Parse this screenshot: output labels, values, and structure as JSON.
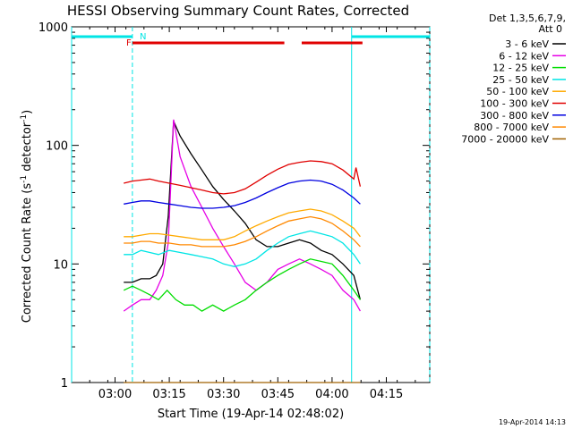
{
  "chart_data": {
    "type": "line",
    "title": "HESSI Observing Summary Count Rates, Corrected",
    "xlabel": "Start Time (19-Apr-14 02:48:02)",
    "ylabel_main": "Corrected Count Rate (s",
    "ylabel_sup1": "-1",
    "ylabel_mid": " detector",
    "ylabel_sup2": "-1",
    "ylabel_end": ")",
    "yscale": "log",
    "ylim": [
      1,
      1000
    ],
    "xlim": [
      2.8,
      4.45
    ],
    "x_ticks": [
      {
        "x": 3.0,
        "label": "03:00"
      },
      {
        "x": 3.25,
        "label": "03:15"
      },
      {
        "x": 3.5,
        "label": "03:30"
      },
      {
        "x": 3.75,
        "label": "03:45"
      },
      {
        "x": 4.0,
        "label": "04:00"
      },
      {
        "x": 4.25,
        "label": "04:15"
      }
    ],
    "y_ticks": [
      {
        "y": 1,
        "label": "1"
      },
      {
        "y": 10,
        "label": "10"
      },
      {
        "y": 100,
        "label": "100"
      },
      {
        "y": 1000,
        "label": "1000"
      }
    ],
    "legend_header": [
      "Det 1,3,5,6,7,9,",
      "Att 0"
    ],
    "timestamp": "19-Apr-2014 14:13",
    "flags": {
      "night_label": "N",
      "flare_label": "F",
      "night_color": "#00e5e5",
      "flare_color": "#e00000",
      "night_segments": [
        [
          2.8,
          3.08
        ],
        [
          4.09,
          4.45
        ]
      ],
      "flare_segments": [
        [
          3.08,
          3.78
        ],
        [
          3.86,
          4.14
        ]
      ]
    },
    "series": [
      {
        "name": "3 - 6 keV",
        "color": "#000000",
        "x": [
          3.04,
          3.08,
          3.12,
          3.16,
          3.19,
          3.22,
          3.245,
          3.27,
          3.3,
          3.35,
          3.4,
          3.45,
          3.5,
          3.55,
          3.6,
          3.65,
          3.7,
          3.75,
          3.8,
          3.85,
          3.9,
          3.95,
          4.0,
          4.05,
          4.1,
          4.13
        ],
        "y": [
          7,
          7,
          7.5,
          7.5,
          8,
          10,
          25,
          160,
          120,
          85,
          62,
          45,
          35,
          28,
          22,
          16,
          14,
          14,
          15,
          16,
          15,
          13,
          12,
          10,
          8,
          5
        ]
      },
      {
        "name": "6 - 12 keV",
        "color": "#e600e6",
        "x": [
          3.04,
          3.08,
          3.12,
          3.16,
          3.19,
          3.22,
          3.245,
          3.27,
          3.3,
          3.35,
          3.4,
          3.45,
          3.5,
          3.55,
          3.6,
          3.65,
          3.7,
          3.75,
          3.8,
          3.85,
          3.9,
          3.95,
          4.0,
          4.05,
          4.1,
          4.13
        ],
        "y": [
          4,
          4.5,
          5,
          5,
          6,
          8,
          15,
          165,
          80,
          45,
          30,
          20,
          14,
          10,
          7,
          6,
          7,
          9,
          10,
          11,
          10,
          9,
          8,
          6,
          5,
          4
        ]
      },
      {
        "name": "12 - 25 keV",
        "color": "#00dd00",
        "x": [
          3.04,
          3.08,
          3.12,
          3.16,
          3.2,
          3.24,
          3.28,
          3.32,
          3.36,
          3.4,
          3.45,
          3.5,
          3.55,
          3.6,
          3.65,
          3.7,
          3.75,
          3.8,
          3.85,
          3.9,
          3.95,
          4.0,
          4.05,
          4.1,
          4.13
        ],
        "y": [
          6,
          6.5,
          6,
          5.5,
          5,
          6,
          5,
          4.5,
          4.5,
          4,
          4.5,
          4,
          4.5,
          5,
          6,
          7,
          8,
          9,
          10,
          11,
          10.5,
          10,
          8,
          6,
          5
        ]
      },
      {
        "name": "25 - 50 keV",
        "color": "#00e5e5",
        "x": [
          3.04,
          3.08,
          3.12,
          3.16,
          3.2,
          3.25,
          3.3,
          3.35,
          3.4,
          3.45,
          3.5,
          3.55,
          3.6,
          3.65,
          3.7,
          3.75,
          3.8,
          3.85,
          3.9,
          3.95,
          4.0,
          4.05,
          4.1,
          4.13
        ],
        "y": [
          12,
          12,
          13,
          12.5,
          12,
          13,
          12.5,
          12,
          11.5,
          11,
          10,
          9.5,
          10,
          11,
          13,
          15,
          17,
          18,
          19,
          18,
          17,
          15,
          12,
          10
        ]
      },
      {
        "name": "50 - 100 keV",
        "color": "#ffaa00",
        "x": [
          3.04,
          3.08,
          3.12,
          3.16,
          3.2,
          3.25,
          3.3,
          3.35,
          3.4,
          3.45,
          3.5,
          3.55,
          3.6,
          3.65,
          3.7,
          3.75,
          3.8,
          3.85,
          3.9,
          3.95,
          4.0,
          4.05,
          4.1,
          4.13
        ],
        "y": [
          17,
          17,
          17.5,
          18,
          18,
          17.5,
          17,
          16.5,
          16,
          16,
          16,
          17,
          19,
          21,
          23,
          25,
          27,
          28,
          29,
          28,
          26,
          23,
          20,
          17
        ]
      },
      {
        "name": "100 - 300 keV",
        "color": "#e00000",
        "x": [
          3.04,
          3.08,
          3.12,
          3.16,
          3.2,
          3.25,
          3.3,
          3.35,
          3.4,
          3.45,
          3.5,
          3.55,
          3.6,
          3.65,
          3.7,
          3.75,
          3.8,
          3.85,
          3.9,
          3.95,
          4.0,
          4.05,
          4.1,
          4.11,
          4.13
        ],
        "y": [
          48,
          50,
          51,
          52,
          50,
          48,
          46,
          44,
          42,
          40,
          39,
          40,
          43,
          49,
          56,
          63,
          69,
          72,
          74,
          73,
          70,
          62,
          52,
          65,
          45
        ]
      },
      {
        "name": "300 - 800 keV",
        "color": "#0000e0",
        "x": [
          3.04,
          3.08,
          3.12,
          3.16,
          3.2,
          3.25,
          3.3,
          3.35,
          3.4,
          3.45,
          3.5,
          3.55,
          3.6,
          3.65,
          3.7,
          3.75,
          3.8,
          3.85,
          3.9,
          3.95,
          4.0,
          4.05,
          4.1,
          4.13
        ],
        "y": [
          32,
          33,
          34,
          34,
          33,
          32,
          31,
          30,
          29.5,
          29.5,
          30,
          31,
          33,
          36,
          40,
          44,
          48,
          50,
          51,
          50,
          47,
          42,
          36,
          32
        ]
      },
      {
        "name": "800 - 7000 keV",
        "color": "#ff8800",
        "x": [
          3.04,
          3.08,
          3.12,
          3.16,
          3.2,
          3.25,
          3.3,
          3.35,
          3.4,
          3.45,
          3.5,
          3.55,
          3.6,
          3.65,
          3.7,
          3.75,
          3.8,
          3.85,
          3.9,
          3.95,
          4.0,
          4.05,
          4.1,
          4.13
        ],
        "y": [
          15,
          15,
          15.5,
          15.5,
          15,
          15,
          14.5,
          14.5,
          14,
          14,
          14,
          14.5,
          15.5,
          17,
          19,
          21,
          23,
          24,
          25,
          24,
          22,
          19,
          16,
          14
        ]
      },
      {
        "name": "7000 - 20000 keV",
        "color": "#a06000",
        "x": [
          3.04,
          4.13
        ],
        "y": [
          1,
          1
        ]
      }
    ]
  }
}
